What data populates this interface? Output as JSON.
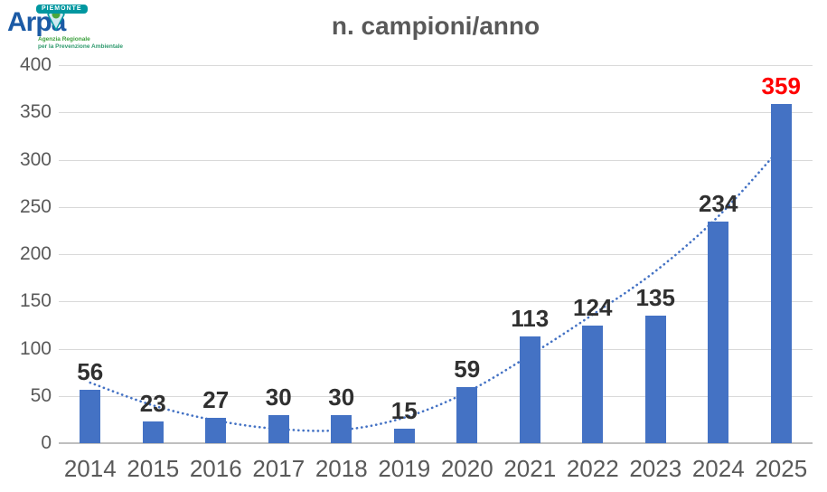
{
  "logo": {
    "region_banner": "PIEMONTE",
    "name": "Arpa",
    "tagline_line1": "Agenzia Regionale",
    "tagline_line2": "per la Prevenzione Ambientale",
    "colors": {
      "blue": "#1b5aa5",
      "teal": "#0097a0",
      "green": "#4aa63c"
    }
  },
  "chart_data": {
    "type": "bar",
    "title": "n. campioni/anno",
    "categories": [
      "2014",
      "2015",
      "2016",
      "2017",
      "2018",
      "2019",
      "2020",
      "2021",
      "2022",
      "2023",
      "2024",
      "2025"
    ],
    "values": [
      56,
      23,
      27,
      30,
      30,
      15,
      59,
      113,
      124,
      135,
      234,
      359
    ],
    "value_label_color": "#303030",
    "highlight_index": 11,
    "highlight_color": "#ff0000",
    "bar_color": "#4472c4",
    "trendline": {
      "style": "dotted",
      "color": "#4472c4",
      "values": [
        64,
        40,
        24,
        15,
        14,
        27,
        54,
        93,
        136,
        182,
        240,
        313
      ]
    },
    "yticks": [
      0,
      50,
      100,
      150,
      200,
      250,
      300,
      350,
      400
    ],
    "ylim": [
      0,
      400
    ],
    "grid": true,
    "gridline_color": "#d9d9d9",
    "axis_label_color": "#595959",
    "legend": "none",
    "xlabel": "",
    "ylabel": ""
  }
}
